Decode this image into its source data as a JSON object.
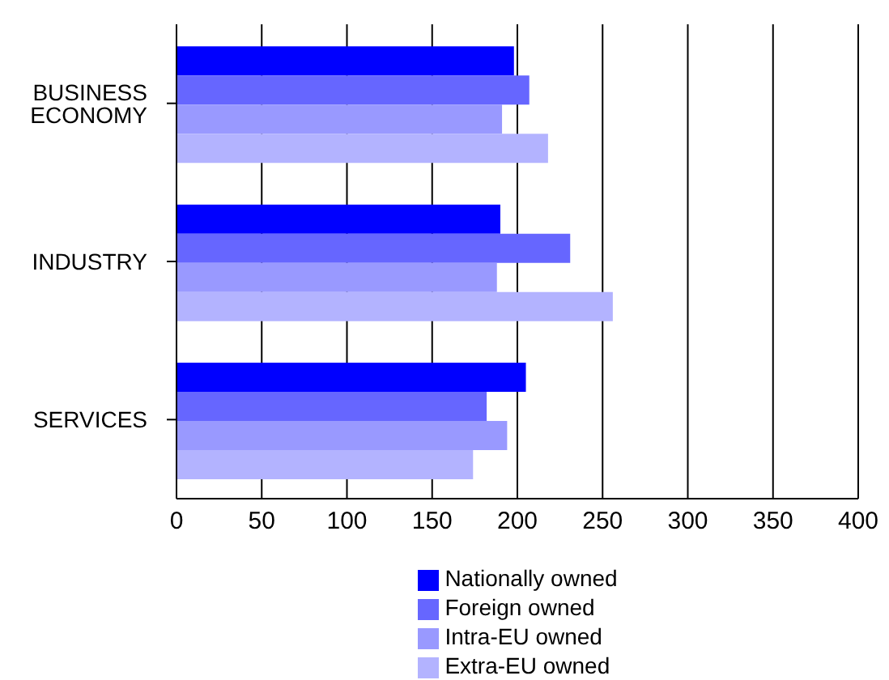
{
  "chart_data": {
    "type": "bar",
    "orientation": "horizontal",
    "categories": [
      "BUSINESS ECONOMY",
      "INDUSTRY",
      "SERVICES"
    ],
    "series": [
      {
        "name": "Nationally owned",
        "color": "#0000ff",
        "values": [
          198,
          190,
          205
        ]
      },
      {
        "name": "Foreign owned",
        "color": "#6666ff",
        "values": [
          207,
          231,
          182
        ]
      },
      {
        "name": "Intra-EU owned",
        "color": "#9999ff",
        "values": [
          191,
          188,
          194
        ]
      },
      {
        "name": "Extra-EU owned",
        "color": "#b3b3ff",
        "values": [
          218,
          256,
          174
        ]
      }
    ],
    "xlim": [
      0,
      400
    ],
    "xticks": [
      0,
      50,
      100,
      150,
      200,
      250,
      300,
      350,
      400
    ],
    "grid": "x",
    "legend": "bottom"
  }
}
